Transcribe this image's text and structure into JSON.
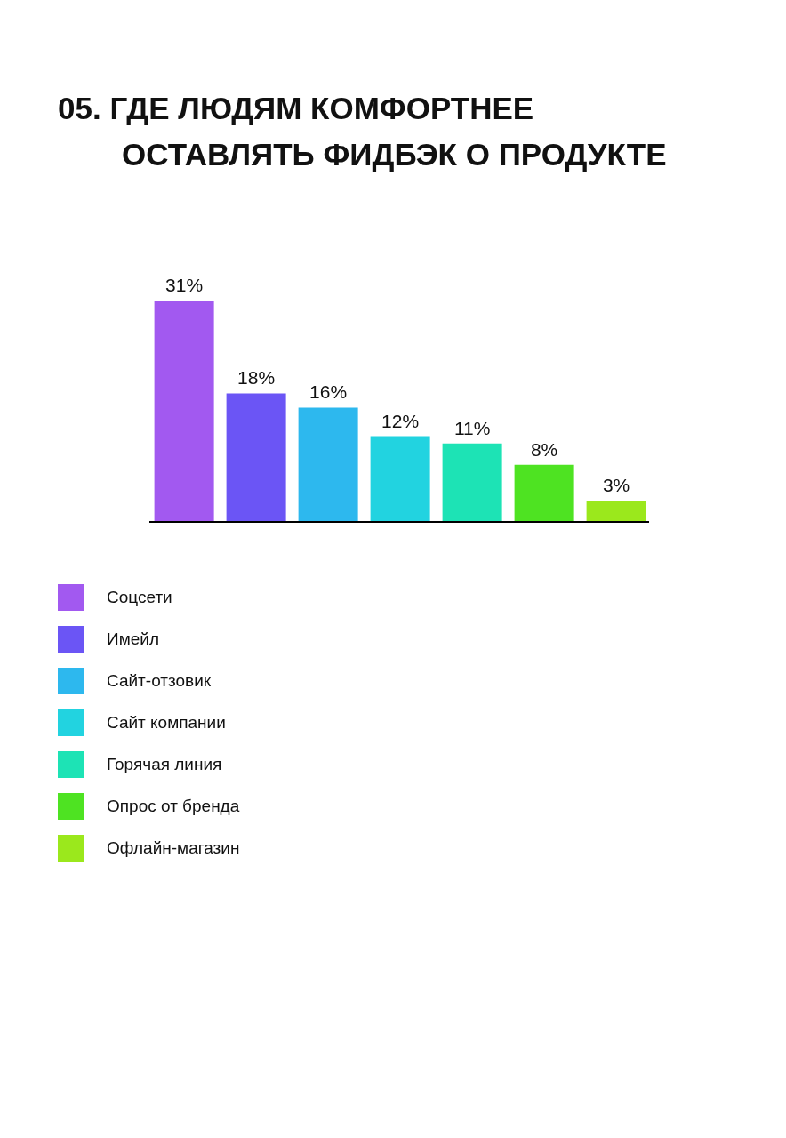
{
  "chart_data": {
    "type": "bar",
    "title": "05. ГДЕ ЛЮДЯМ КОМФОРТНЕЕ ОСТАВЛЯТЬ ФИДБЭК О ПРОДУКТЕ",
    "categories": [
      null
    ],
    "series": [
      {
        "name": "Соцсети",
        "color": "#a259f0",
        "values": [
          31
        ],
        "value_labels": [
          "31%"
        ]
      },
      {
        "name": "Имейл",
        "color": "#6b55f5",
        "values": [
          18
        ],
        "value_labels": [
          "18%"
        ]
      },
      {
        "name": "Сайт-отзовик",
        "color": "#2db8ee",
        "values": [
          16
        ],
        "value_labels": [
          "16%"
        ]
      },
      {
        "name": "Сайт компании",
        "color": "#22d3e0",
        "values": [
          12
        ],
        "value_labels": [
          "12%"
        ]
      },
      {
        "name": "Горячая линия",
        "color": "#1de3b5",
        "values": [
          11
        ],
        "value_labels": [
          "11%"
        ]
      },
      {
        "name": "Опрос от бренда",
        "color": "#4ee322",
        "values": [
          8
        ],
        "value_labels": [
          "8%"
        ]
      },
      {
        "name": "Офлайн-магазин",
        "color": "#9be81c",
        "values": [
          3
        ],
        "value_labels": [
          "3%"
        ]
      }
    ],
    "legend": "bottom left"
  }
}
